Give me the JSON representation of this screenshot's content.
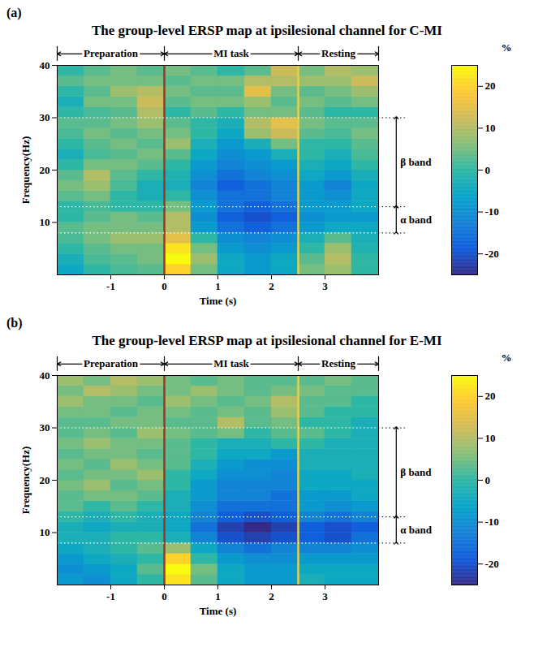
{
  "chart_data": [
    {
      "type": "heatmap",
      "panel": "(a)",
      "title": "The group-level ERSP map at ipsilesional channel for C-MI",
      "x_label": "Time (s)",
      "y_label": "Frequency(Hz)",
      "xlim": [
        -2,
        4
      ],
      "ylim": [
        0,
        40
      ],
      "xticks": [
        -1,
        0,
        1,
        2,
        3
      ],
      "yticks": [
        10,
        20,
        30,
        40
      ],
      "phases": [
        {
          "label": "Preparation",
          "start": -2,
          "end": 0
        },
        {
          "label": "MI task",
          "start": 0,
          "end": 2.5
        },
        {
          "label": "Resting",
          "start": 2.5,
          "end": 4
        }
      ],
      "bands": [
        {
          "label": "β band",
          "low": 13,
          "high": 30
        },
        {
          "label": "α band",
          "low": 8,
          "high": 13
        }
      ],
      "x_edges": [
        -2,
        -1.5,
        -1,
        -0.5,
        0,
        0.5,
        1,
        1.5,
        2,
        2.5,
        3,
        3.5,
        4
      ],
      "y_edges": [
        0,
        2,
        4,
        6,
        8,
        10,
        12,
        14,
        16,
        18,
        20,
        22,
        24,
        26,
        28,
        30,
        32,
        34,
        36,
        38,
        40
      ],
      "cells": [
        [
          -5,
          0,
          2,
          3,
          20,
          5,
          -5,
          -8,
          -5,
          5,
          8,
          0
        ],
        [
          -3,
          2,
          3,
          5,
          25,
          8,
          -5,
          -8,
          -5,
          3,
          10,
          0
        ],
        [
          0,
          3,
          5,
          5,
          22,
          5,
          -8,
          -10,
          -8,
          0,
          8,
          -2
        ],
        [
          2,
          5,
          8,
          8,
          15,
          0,
          -10,
          -12,
          -10,
          -3,
          3,
          -3
        ],
        [
          3,
          5,
          5,
          5,
          10,
          -8,
          -15,
          -18,
          -15,
          -8,
          -5,
          -5
        ],
        [
          0,
          3,
          5,
          3,
          10,
          -10,
          -18,
          -20,
          -18,
          -10,
          -8,
          -8
        ],
        [
          0,
          2,
          0,
          0,
          5,
          -8,
          -15,
          -18,
          -15,
          -8,
          -8,
          -5
        ],
        [
          3,
          5,
          0,
          -3,
          0,
          -10,
          -15,
          -15,
          -12,
          -8,
          -10,
          -5
        ],
        [
          5,
          8,
          2,
          -3,
          -3,
          -12,
          -18,
          -15,
          -12,
          -8,
          -12,
          -5
        ],
        [
          3,
          10,
          3,
          0,
          -2,
          -10,
          -15,
          -12,
          -10,
          -5,
          -8,
          -3
        ],
        [
          0,
          5,
          5,
          3,
          0,
          -8,
          -12,
          -10,
          -8,
          -3,
          -5,
          0
        ],
        [
          -3,
          2,
          3,
          5,
          3,
          -5,
          -10,
          -8,
          -3,
          0,
          -3,
          2
        ],
        [
          0,
          3,
          5,
          3,
          8,
          -3,
          -8,
          -3,
          5,
          0,
          0,
          3
        ],
        [
          2,
          5,
          3,
          5,
          5,
          0,
          -5,
          8,
          12,
          3,
          2,
          5
        ],
        [
          3,
          3,
          5,
          8,
          3,
          0,
          -3,
          10,
          15,
          5,
          3,
          3
        ],
        [
          0,
          2,
          3,
          10,
          0,
          3,
          0,
          5,
          5,
          3,
          0,
          0
        ],
        [
          -3,
          5,
          5,
          12,
          3,
          5,
          5,
          8,
          3,
          5,
          3,
          5
        ],
        [
          0,
          3,
          8,
          10,
          5,
          3,
          3,
          15,
          5,
          3,
          5,
          8
        ],
        [
          3,
          5,
          5,
          5,
          3,
          5,
          5,
          10,
          10,
          8,
          8,
          12
        ],
        [
          0,
          3,
          5,
          3,
          5,
          3,
          0,
          3,
          12,
          5,
          10,
          8
        ]
      ],
      "colorbar": {
        "label": "%",
        "lim": [
          -25,
          25
        ],
        "ticks": [
          -20,
          -10,
          0,
          10,
          20
        ]
      }
    },
    {
      "type": "heatmap",
      "panel": "(b)",
      "title": "The group-level ERSP map at ipsilesional channel for E-MI",
      "x_label": "Time (s)",
      "y_label": "Frequency(Hz)",
      "xlim": [
        -2,
        4
      ],
      "ylim": [
        0,
        40
      ],
      "xticks": [
        -1,
        0,
        1,
        2,
        3
      ],
      "yticks": [
        10,
        20,
        30,
        40
      ],
      "phases": [
        {
          "label": "Preparation",
          "start": -2,
          "end": 0
        },
        {
          "label": "MI task",
          "start": 0,
          "end": 2.5
        },
        {
          "label": "Resting",
          "start": 2.5,
          "end": 4
        }
      ],
      "bands": [
        {
          "label": "β band",
          "low": 13,
          "high": 30
        },
        {
          "label": "α band",
          "low": 8,
          "high": 13
        }
      ],
      "x_edges": [
        -2,
        -1.5,
        -1,
        -0.5,
        0,
        0.5,
        1,
        1.5,
        2,
        2.5,
        3,
        3.5,
        4
      ],
      "y_edges": [
        0,
        2,
        4,
        6,
        8,
        10,
        12,
        14,
        16,
        18,
        20,
        22,
        24,
        26,
        28,
        30,
        32,
        34,
        36,
        38,
        40
      ],
      "cells": [
        [
          -8,
          -10,
          -5,
          0,
          22,
          3,
          -5,
          -8,
          -8,
          -3,
          -5,
          -5
        ],
        [
          -10,
          -8,
          -5,
          3,
          25,
          5,
          -5,
          -8,
          -8,
          -5,
          -5,
          -5
        ],
        [
          -8,
          -5,
          -3,
          0,
          20,
          0,
          -8,
          -10,
          -10,
          -8,
          -8,
          -8
        ],
        [
          -5,
          -3,
          0,
          3,
          8,
          -5,
          -12,
          -15,
          -12,
          -12,
          -12,
          -10
        ],
        [
          -3,
          -3,
          0,
          0,
          -3,
          -12,
          -20,
          -22,
          -20,
          -18,
          -20,
          -15
        ],
        [
          -3,
          -5,
          -3,
          -3,
          -5,
          -15,
          -22,
          -25,
          -22,
          -18,
          -20,
          -18
        ],
        [
          0,
          -3,
          0,
          -3,
          -5,
          -12,
          -18,
          -20,
          -18,
          -12,
          -15,
          -12
        ],
        [
          3,
          0,
          3,
          0,
          -3,
          -10,
          -15,
          -15,
          -15,
          -8,
          -10,
          -8
        ],
        [
          3,
          5,
          5,
          3,
          -3,
          -8,
          -12,
          -12,
          -15,
          -8,
          -8,
          -5
        ],
        [
          5,
          8,
          3,
          5,
          0,
          -8,
          -12,
          -12,
          -12,
          -5,
          -5,
          -5
        ],
        [
          3,
          5,
          5,
          8,
          0,
          -5,
          -10,
          -10,
          -12,
          -5,
          -5,
          -3
        ],
        [
          5,
          3,
          8,
          5,
          3,
          -3,
          -8,
          -10,
          -10,
          -3,
          -3,
          -3
        ],
        [
          3,
          5,
          5,
          3,
          3,
          0,
          -5,
          -5,
          -8,
          -3,
          -3,
          -3
        ],
        [
          5,
          8,
          5,
          5,
          3,
          0,
          -3,
          -3,
          0,
          0,
          -3,
          -3
        ],
        [
          3,
          5,
          3,
          8,
          5,
          3,
          5,
          0,
          3,
          3,
          0,
          -3
        ],
        [
          3,
          3,
          5,
          5,
          3,
          3,
          10,
          3,
          5,
          0,
          0,
          -3
        ],
        [
          5,
          5,
          3,
          5,
          5,
          3,
          5,
          3,
          8,
          3,
          0,
          0
        ],
        [
          8,
          5,
          5,
          3,
          8,
          5,
          3,
          5,
          10,
          3,
          3,
          0
        ],
        [
          5,
          10,
          8,
          5,
          5,
          8,
          5,
          3,
          5,
          5,
          3,
          3
        ],
        [
          8,
          5,
          10,
          8,
          5,
          3,
          5,
          3,
          3,
          3,
          5,
          3
        ]
      ],
      "colorbar": {
        "label": "%",
        "lim": [
          -25,
          25
        ],
        "ticks": [
          -20,
          -10,
          0,
          10,
          20
        ]
      }
    }
  ]
}
